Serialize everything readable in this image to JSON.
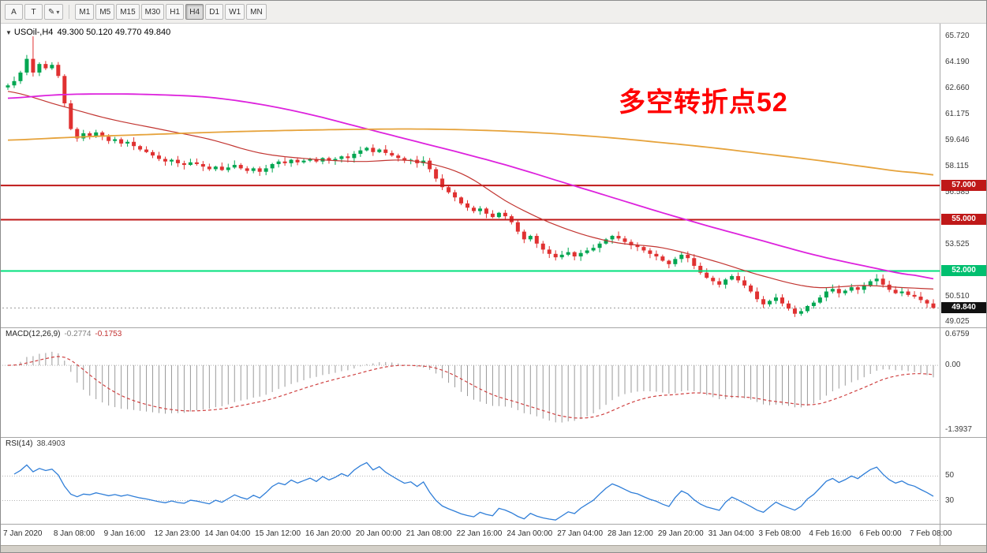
{
  "toolbar": {
    "buttons": {
      "cursor": "A",
      "text_tool": "T",
      "brush": "✎",
      "caret": "▾"
    },
    "timeframes": [
      "M1",
      "M5",
      "M15",
      "M30",
      "H1",
      "H4",
      "D1",
      "W1",
      "MN"
    ],
    "active_timeframe": "H4"
  },
  "price_pane": {
    "dropdown_glyph": "▼",
    "header_symbol": "USOil-,H4",
    "header_ohlc": "49.300 50.120 49.770 49.840",
    "annotation": "多空转折点52",
    "annotation_color": "#ff0000",
    "axis_labels": [
      "65.720",
      "64.190",
      "62.660",
      "61.175",
      "59.646",
      "58.115",
      "56.585",
      "53.525",
      "50.510",
      "49.025"
    ],
    "axis_prices": [
      65.72,
      64.19,
      62.66,
      61.175,
      59.646,
      58.115,
      56.585,
      53.525,
      50.51,
      49.025
    ],
    "badges": [
      {
        "label": "57.000",
        "price": 57.0,
        "color": "#bf1818"
      },
      {
        "label": "55.000",
        "price": 55.0,
        "color": "#bf1818"
      },
      {
        "label": "52.000",
        "price": 52.0,
        "color": "#00bf6f"
      },
      {
        "label": "49.840",
        "price": 49.84,
        "color": "#111111"
      }
    ],
    "hlines": [
      {
        "price": 57.0,
        "color": "#bf1818",
        "width": 2
      },
      {
        "price": 55.0,
        "color": "#bf1818",
        "width": 2
      },
      {
        "price": 52.0,
        "color": "#00e07c",
        "width": 2
      }
    ],
    "current_price": 49.84
  },
  "chart_data": {
    "type": "candlestick",
    "symbol": "USOil",
    "timeframe": "H4",
    "title": "USOil-,H4 49.300 50.120 49.770 49.840",
    "x_labels": [
      "7 Jan 2020",
      "8 Jan 08:00",
      "9 Jan 16:00",
      "12 Jan 23:00",
      "14 Jan 04:00",
      "15 Jan 12:00",
      "16 Jan 20:00",
      "20 Jan 00:00",
      "21 Jan 08:00",
      "22 Jan 16:00",
      "24 Jan 00:00",
      "27 Jan 04:00",
      "28 Jan 12:00",
      "29 Jan 20:00",
      "31 Jan 04:00",
      "3 Feb 08:00",
      "4 Feb 16:00",
      "6 Feb 00:00",
      "7 Feb 08:00"
    ],
    "bars_per_label": 8,
    "ylim": [
      49.025,
      65.72
    ],
    "up_color": "#00a651",
    "down_color": "#e03131",
    "closes": [
      62.85,
      63.1,
      63.6,
      64.4,
      63.6,
      64.1,
      63.85,
      64.05,
      63.4,
      61.8,
      60.3,
      59.75,
      60.05,
      59.9,
      60.1,
      59.85,
      59.6,
      59.7,
      59.45,
      59.55,
      59.3,
      59.1,
      58.95,
      58.75,
      58.55,
      58.4,
      58.5,
      58.3,
      58.2,
      58.35,
      58.25,
      58.1,
      57.95,
      58.1,
      57.9,
      58.05,
      58.2,
      58.0,
      57.85,
      58.0,
      57.8,
      58.0,
      58.25,
      58.4,
      58.3,
      58.5,
      58.35,
      58.45,
      58.55,
      58.4,
      58.6,
      58.45,
      58.55,
      58.7,
      58.6,
      58.85,
      59.05,
      59.2,
      58.95,
      59.1,
      58.9,
      58.75,
      58.6,
      58.45,
      58.5,
      58.3,
      58.45,
      57.95,
      57.4,
      56.9,
      56.6,
      56.3,
      55.95,
      55.7,
      55.5,
      55.65,
      55.35,
      55.15,
      55.4,
      55.2,
      54.85,
      54.3,
      53.85,
      54.05,
      53.6,
      53.25,
      53.0,
      52.8,
      52.95,
      53.1,
      52.85,
      53.05,
      53.2,
      53.35,
      53.6,
      53.85,
      54.05,
      53.9,
      53.7,
      53.5,
      53.4,
      53.2,
      53.0,
      52.85,
      52.6,
      52.4,
      52.7,
      52.95,
      52.75,
      52.3,
      51.9,
      51.6,
      51.4,
      51.2,
      51.5,
      51.7,
      51.45,
      51.15,
      50.8,
      50.35,
      50.05,
      50.25,
      50.45,
      50.1,
      49.8,
      49.5,
      49.65,
      49.95,
      50.15,
      50.45,
      50.8,
      50.95,
      50.7,
      50.85,
      51.05,
      50.9,
      51.15,
      51.4,
      51.55,
      51.2,
      50.9,
      50.7,
      50.8,
      50.6,
      50.5,
      50.3,
      50.1,
      49.84
    ],
    "spike_bar": {
      "index": 4,
      "high": 65.72
    },
    "low_bar": {
      "index": 125,
      "low": 49.31
    },
    "moving_averages": [
      {
        "name": "fast-ma-red",
        "color": "#c23531",
        "width": 1.2,
        "keyframes": [
          62.5,
          61.7,
          60.9,
          60.3,
          59.7,
          58.9,
          58.55,
          58.4,
          58.45,
          57.7,
          55.9,
          54.55,
          53.7,
          53.35,
          52.6,
          51.7,
          51.05,
          51.15,
          51.0
        ]
      },
      {
        "name": "mid-ma-magenta",
        "color": "#dd22dd",
        "width": 1.8,
        "keyframes": [
          62.1,
          62.3,
          62.35,
          62.3,
          62.15,
          61.75,
          61.15,
          60.4,
          59.65,
          58.9,
          58.1,
          57.2,
          56.3,
          55.4,
          54.55,
          53.75,
          52.95,
          52.3,
          51.75
        ]
      },
      {
        "name": "slow-ma-orange",
        "color": "#e6a33c",
        "width": 1.8,
        "keyframes": [
          59.65,
          59.78,
          59.9,
          60.0,
          60.1,
          60.18,
          60.24,
          60.28,
          60.3,
          60.26,
          60.16,
          60.0,
          59.78,
          59.5,
          59.2,
          58.85,
          58.5,
          58.1,
          57.75
        ]
      }
    ],
    "macd": {
      "title": "MACD(12,26,9)",
      "main": "-0.2774",
      "signal": "-0.1753",
      "fast": 12,
      "slow": 26,
      "smooth": 9,
      "axis_labels": [
        "0.6759",
        "0.00",
        "-1.3937"
      ],
      "axis_values": [
        0.6759,
        0.0,
        -1.3937
      ],
      "ylim": [
        -1.47,
        0.72
      ],
      "hist_color": "#9a9a9a",
      "signal_color": "#cf4040"
    },
    "rsi": {
      "title": "RSI(14)",
      "value": "38.4903",
      "period": 14,
      "levels": [
        50,
        30
      ],
      "ylim": [
        13,
        76
      ],
      "line_color": "#2f7ed8"
    }
  }
}
